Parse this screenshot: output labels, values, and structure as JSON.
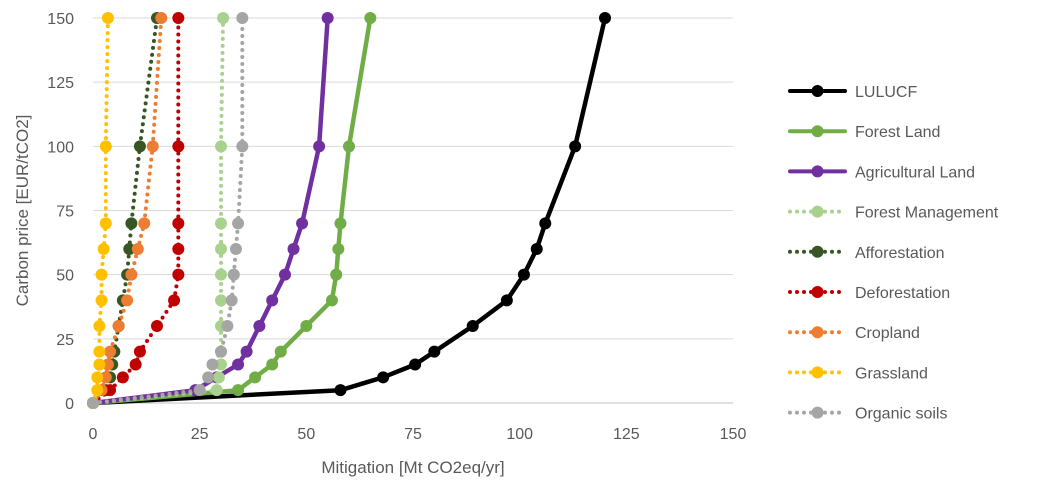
{
  "chart_data": {
    "type": "line",
    "title": "",
    "xlabel": "Mitigation [Mt CO2eq/yr]",
    "ylabel": "Carbon price [EUR/tCO2]",
    "xlim": [
      0,
      150
    ],
    "ylim": [
      0,
      150
    ],
    "x_ticks": [
      0,
      25,
      50,
      75,
      100,
      125,
      150
    ],
    "y_ticks": [
      0,
      25,
      50,
      75,
      100,
      125,
      150
    ],
    "grid": "horizontal",
    "legend_position": "right",
    "y_levels": [
      0,
      5,
      10,
      15,
      20,
      30,
      40,
      50,
      60,
      70,
      100,
      150
    ],
    "series": [
      {
        "name": "LULUCF",
        "color": "#000000",
        "style": "solid",
        "x": [
          0,
          58,
          68,
          75.5,
          80,
          89,
          97,
          101,
          104,
          106,
          113,
          120
        ],
        "y": [
          0,
          5,
          10,
          15,
          20,
          30,
          40,
          50,
          60,
          70,
          100,
          150
        ]
      },
      {
        "name": "Forest Land",
        "color": "#70AD47",
        "style": "solid",
        "x": [
          0,
          34,
          38,
          42,
          44,
          50,
          56,
          57,
          57.5,
          58,
          60,
          65
        ],
        "y": [
          0,
          5,
          10,
          15,
          20,
          30,
          40,
          50,
          60,
          70,
          100,
          150
        ]
      },
      {
        "name": "Agricultural Land",
        "color": "#7030A0",
        "style": "solid",
        "x": [
          0,
          24,
          29,
          34,
          36,
          39,
          42,
          45,
          47,
          49,
          53,
          55
        ],
        "y": [
          0,
          5,
          10,
          15,
          20,
          30,
          40,
          50,
          60,
          70,
          100,
          150
        ]
      },
      {
        "name": "Forest Management",
        "color": "#A9D18E",
        "style": "dotted",
        "x": [
          0,
          29,
          29.5,
          30,
          30,
          30,
          30,
          30,
          30,
          30,
          30,
          30.5
        ],
        "y": [
          0,
          5,
          10,
          15,
          20,
          30,
          40,
          50,
          60,
          70,
          100,
          150
        ]
      },
      {
        "name": "Afforestation",
        "color": "#375623",
        "style": "dotted",
        "x": [
          0,
          3,
          4,
          4.5,
          5,
          6,
          7,
          8,
          8.5,
          9,
          11,
          15
        ],
        "y": [
          0,
          5,
          10,
          15,
          20,
          30,
          40,
          50,
          60,
          70,
          100,
          150
        ]
      },
      {
        "name": "Deforestation",
        "color": "#C00000",
        "style": "dotted",
        "x": [
          0,
          4,
          7,
          10,
          11,
          15,
          19,
          20,
          20,
          20,
          20,
          20
        ],
        "y": [
          0,
          5,
          10,
          15,
          20,
          30,
          40,
          50,
          60,
          70,
          100,
          150
        ]
      },
      {
        "name": "Cropland",
        "color": "#ED7D31",
        "style": "dotted",
        "x": [
          0,
          2,
          3,
          3.5,
          4,
          6,
          8,
          9,
          10.5,
          12,
          14,
          16
        ],
        "y": [
          0,
          5,
          10,
          15,
          20,
          30,
          40,
          50,
          60,
          70,
          100,
          150
        ]
      },
      {
        "name": "Grassland",
        "color": "#FFC000",
        "style": "dotted",
        "x": [
          0,
          1,
          1,
          1.5,
          1.5,
          1.5,
          2,
          2,
          2.5,
          3,
          3,
          3.5
        ],
        "y": [
          0,
          5,
          10,
          15,
          20,
          30,
          40,
          50,
          60,
          70,
          100,
          150
        ]
      },
      {
        "name": "Organic soils",
        "color": "#A5A5A5",
        "style": "dotted",
        "x": [
          0,
          25,
          27,
          28,
          30,
          31.5,
          32.5,
          33,
          33.5,
          34,
          35,
          35
        ],
        "y": [
          0,
          5,
          10,
          15,
          20,
          30,
          40,
          50,
          60,
          70,
          100,
          150
        ]
      }
    ]
  }
}
